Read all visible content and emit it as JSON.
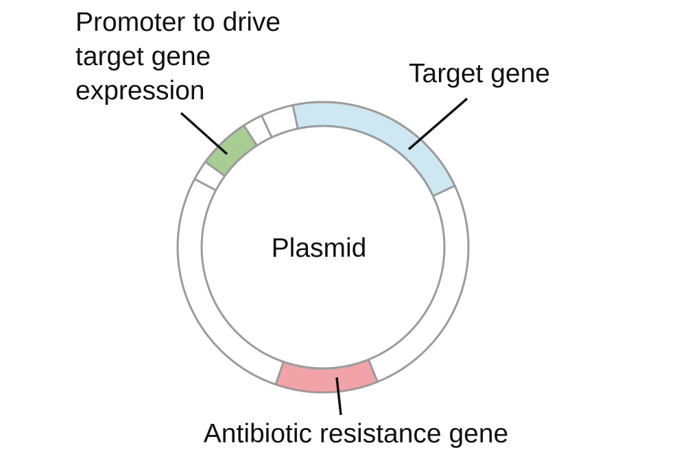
{
  "diagram": {
    "center_label": "Plasmid",
    "segments": {
      "promoter": {
        "label_lines": [
          "Promoter to drive",
          "target gene",
          "expression"
        ],
        "color": "#a8cd93"
      },
      "target_gene": {
        "label": "Target gene",
        "color": "#cde8f3"
      },
      "antibiotic": {
        "label": "Antibiotic resistance gene",
        "color": "#f2a3a7"
      }
    },
    "ring_stroke_color": "#9b9b9b",
    "leader_line_color": "#111111"
  }
}
